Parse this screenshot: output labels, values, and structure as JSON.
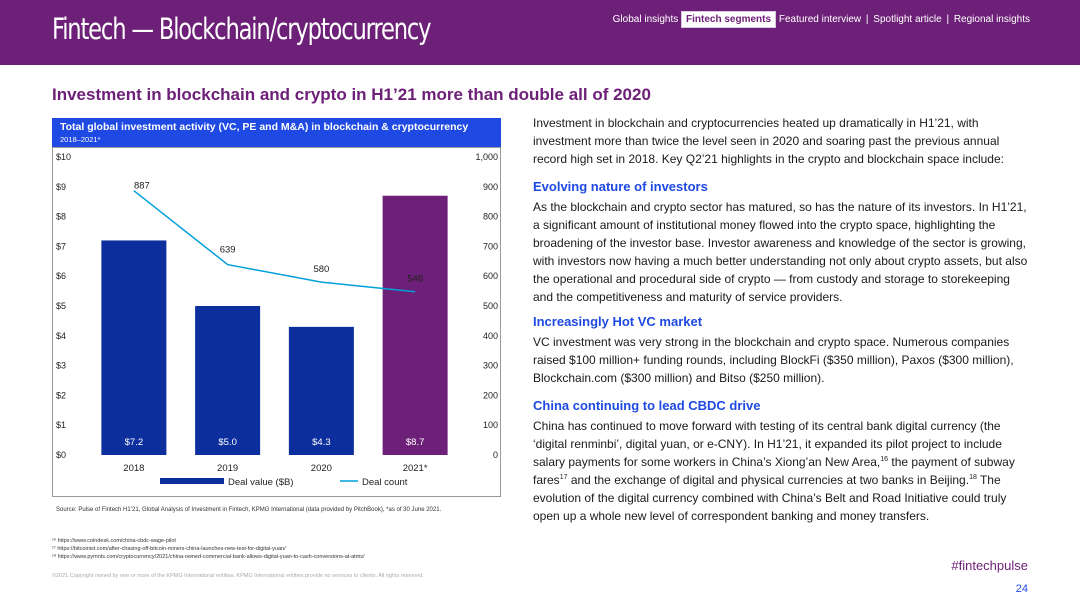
{
  "header": {
    "section_title": "Fintech — Blockchain/cryptocurrency",
    "nav": {
      "global_insights": "Global insights",
      "fintech_segments": "Fintech segments",
      "featured_interview": "Featured interview",
      "separator": "|",
      "spotlight_article": "Spotlight article",
      "regional_insights": "Regional insights"
    }
  },
  "headline": "Investment in blockchain and crypto in H1’21 more than double all of 2020",
  "chart_header": {
    "title": "Total global investment activity (VC, PE and M&A) in blockchain & cryptocurrency",
    "subtitle": "2018–2021*"
  },
  "chart_data": {
    "type": "bar",
    "categories": [
      "2018",
      "2019",
      "2020",
      "2021*"
    ],
    "series": [
      {
        "name": "Deal value ($B)",
        "type": "bar",
        "axis": "left",
        "values": [
          7.2,
          5.0,
          4.3,
          8.7
        ],
        "labels": [
          "$7.2",
          "$5.0",
          "$4.3",
          "$8.7"
        ]
      },
      {
        "name": "Deal count",
        "type": "line",
        "axis": "right",
        "values": [
          887,
          639,
          580,
          548
        ],
        "labels": [
          "887",
          "639",
          "580",
          "548"
        ]
      }
    ],
    "ylim": [
      0,
      10
    ],
    "y2lim": [
      0,
      1000
    ],
    "yticks": [
      "$0",
      "$1",
      "$2",
      "$3",
      "$4",
      "$5",
      "$6",
      "$7",
      "$8",
      "$9",
      "$10"
    ],
    "y2ticks": [
      "0",
      "100",
      "200",
      "300",
      "400",
      "500",
      "600",
      "700",
      "800",
      "900",
      "1,000"
    ],
    "legend_position": "bottom",
    "colors": {
      "bars": "#0c2f9d",
      "last_bar": "#6d2077",
      "line": "#00a0dc"
    }
  },
  "source": "Source: Pulse of Fintech H1’21, Global Analysis of Investment in Fintech, KPMG International (data provided by PitchBook), *as of 30 June 2021.",
  "footnotes": [
    "¹⁶ https://www.coindesk.com/china-cbdc-wage-pilot",
    "¹⁷ https://bitcoinist.com/after-chasing-off-bitcoin-miners-china-launches-new-test-for-digital-yuan/",
    "¹⁸ https://www.pymnts.com/cryptocurrency/2021/china-owned-commercial-bank-allows-digital-yuan-to-cash-conversions-at-atms/"
  ],
  "copyright": "©2021 Copyright owned by one or more of the KPMG International entities. KPMG International entities provide no services to clients. All rights reserved.",
  "intro": "Investment in blockchain and cryptocurrencies heated up dramatically in H1’21, with investment more than twice the level seen in 2020 and soaring past the previous annual record high set in 2018. Key Q2’21 highlights in the crypto and blockchain space include:",
  "sections": [
    {
      "heading": "Evolving nature of investors",
      "body": "As the blockchain and crypto sector has matured, so has the nature of its investors. In H1’21, a significant amount of institutional money flowed into the crypto space, highlighting the broadening of the investor base. Investor awareness and knowledge of the sector is growing, with investors now having a much better understanding not only about crypto assets, but also the operational and procedural side of crypto — from custody and storage to storekeeping and the competitiveness and maturity of service providers."
    },
    {
      "heading": "Increasingly Hot VC market",
      "body": "VC investment was very strong in the blockchain and crypto space. Numerous companies raised $100 million+ funding rounds, including BlockFi ($350 million), Paxos ($300 million), Blockchain.com ($300 million) and Bitso ($250 million)."
    },
    {
      "heading": "China continuing to lead CBDC drive",
      "body_p1": "China has continued to move forward with testing of its central bank digital currency (the ‘digital renminbi’, digital yuan, or e-CNY). In H1’21, it expanded its pilot project to include salary payments for some workers in China’s Xiong’an New Area,",
      "sup1": "16",
      "body_p2": " the payment of subway fares",
      "sup2": "17",
      "body_p3": " and the exchange of digital and physical currencies at two banks in Beijing.",
      "sup3": "18",
      "body_p4": " The evolution of the digital currency combined with China’s Belt and Road Initiative could truly open up a whole new level of correspondent banking and money transfers."
    }
  ],
  "hashtag": "#fintechpulse",
  "page_number": "24"
}
